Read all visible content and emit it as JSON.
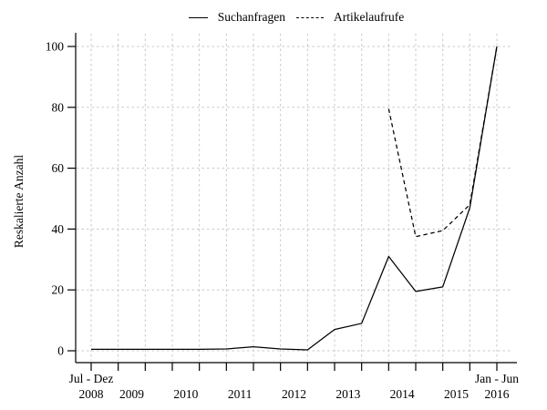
{
  "figure": {
    "background": "#ffffff"
  },
  "legend": {
    "items": [
      {
        "label": "Suchanfragen",
        "line_style": "solid"
      },
      {
        "label": "Artikelaufrufe",
        "line_style": "dashed"
      }
    ]
  },
  "chart_data": {
    "type": "line",
    "title": "",
    "xlabel": "",
    "ylabel": "Reskalierte Anzahl",
    "ylim": [
      0,
      100
    ],
    "y_ticks": [
      0,
      20,
      40,
      60,
      80,
      100
    ],
    "grid": "dotted gray, vertical line at every half-year tick, horizontal at every y tick",
    "legend_position": "top-center",
    "categories": [
      "2008-H2",
      "2009-H1",
      "2009-H2",
      "2010-H1",
      "2010-H2",
      "2011-H1",
      "2011-H2",
      "2012-H1",
      "2012-H2",
      "2013-H1",
      "2013-H2",
      "2014-H1",
      "2014-H2",
      "2015-H1",
      "2015-H2",
      "2016-H1"
    ],
    "x_axis_labels": {
      "row1": [
        {
          "text": "Jul - Dez",
          "tick_index": 0
        },
        {
          "text": "Jan - Jun",
          "tick_index": 15
        }
      ],
      "row2": [
        {
          "text": "2008",
          "tick_index": 0
        },
        {
          "text": "2009",
          "tick_index": 1.5
        },
        {
          "text": "2010",
          "tick_index": 3.5
        },
        {
          "text": "2011",
          "tick_index": 5.5
        },
        {
          "text": "2012",
          "tick_index": 7.5
        },
        {
          "text": "2013",
          "tick_index": 9.5
        },
        {
          "text": "2014",
          "tick_index": 11.5
        },
        {
          "text": "2015",
          "tick_index": 13.5
        },
        {
          "text": "2016",
          "tick_index": 15
        }
      ]
    },
    "series": [
      {
        "name": "Suchanfragen",
        "style": "solid",
        "values": [
          0.5,
          0.5,
          0.5,
          0.5,
          0.5,
          0.6,
          1.3,
          0.6,
          0.3,
          7,
          9,
          31,
          19.5,
          21,
          47,
          100
        ]
      },
      {
        "name": "Artikelaufrufe",
        "style": "dashed",
        "values": [
          null,
          null,
          null,
          null,
          null,
          null,
          null,
          null,
          null,
          null,
          null,
          79.5,
          37.5,
          39.5,
          48,
          100
        ]
      }
    ],
    "colors": {
      "line": "#000000",
      "grid": "#c8c8c8",
      "text": "#000000",
      "background": "#ffffff"
    }
  }
}
